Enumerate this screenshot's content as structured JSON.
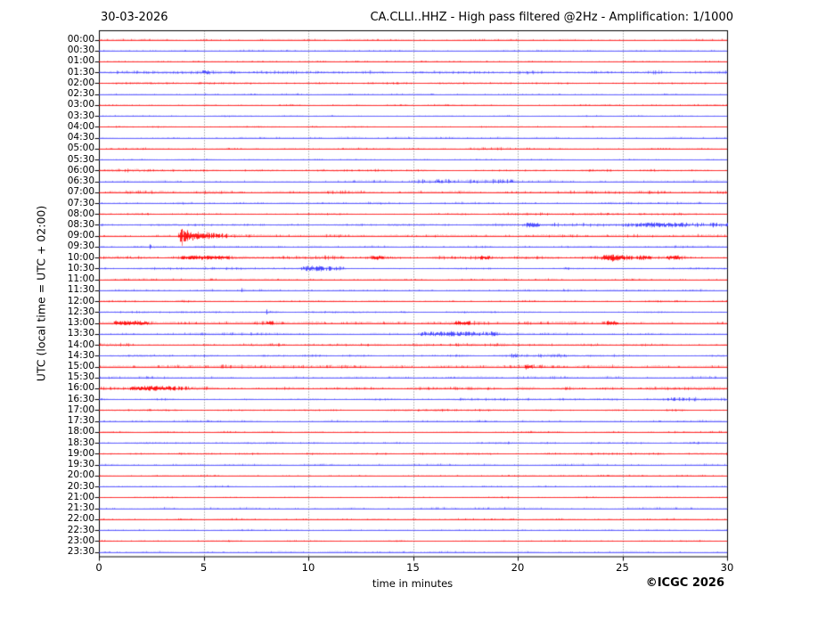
{
  "header": {
    "date": "30-03-2026",
    "title": "CA.CLLI..HHZ - High pass filtered @2Hz - Amplification: 1/1000"
  },
  "axes": {
    "ylabel": "UTC (local time = UTC + 02:00)",
    "xlabel": "time in minutes"
  },
  "footer": {
    "copyright": "©ICGC 2026"
  },
  "palette": {
    "red": "#ff0000",
    "blue": "#3d3dff",
    "grid": "#777777",
    "frame": "#000000",
    "text": "#000000"
  },
  "chart_data": {
    "type": "line",
    "subtype": "helicorder-seismogram",
    "title": "CA.CLLI..HHZ - High pass filtered @2Hz - Amplification: 1/1000",
    "date": "30-03-2026",
    "xlabel": "time in minutes",
    "ylabel": "UTC (local time = UTC + 02:00)",
    "x_range": [
      0,
      30
    ],
    "x_ticks": [
      0,
      5,
      10,
      15,
      20,
      25,
      30
    ],
    "x_gridlines": [
      5,
      10,
      15,
      20,
      25
    ],
    "grid": "vertical-dotted-only",
    "legend": "none",
    "notable_event": {
      "row": "09:00",
      "start_minute": 3.9,
      "description": "large red burst with decaying coda"
    },
    "rows": [
      {
        "label": "00:00",
        "color": "red",
        "base": 0.5,
        "events": []
      },
      {
        "label": "00:30",
        "color": "blue",
        "base": 0.55,
        "events": []
      },
      {
        "label": "01:00",
        "color": "red",
        "base": 0.5,
        "events": []
      },
      {
        "label": "01:30",
        "color": "blue",
        "base": 1.15,
        "events": []
      },
      {
        "label": "02:00",
        "color": "red",
        "base": 0.75,
        "events": []
      },
      {
        "label": "02:30",
        "color": "blue",
        "base": 0.5,
        "events": []
      },
      {
        "label": "03:00",
        "color": "red",
        "base": 0.55,
        "events": []
      },
      {
        "label": "03:30",
        "color": "blue",
        "base": 0.55,
        "events": []
      },
      {
        "label": "04:00",
        "color": "red",
        "base": 0.55,
        "events": []
      },
      {
        "label": "04:30",
        "color": "blue",
        "base": 0.6,
        "events": [
          {
            "t": "band",
            "s": 11.4,
            "e": 12.4,
            "a": 0.7
          }
        ]
      },
      {
        "label": "05:00",
        "color": "red",
        "base": 0.6,
        "events": [
          {
            "t": "band",
            "s": 17.7,
            "e": 19.5,
            "a": 0.9
          }
        ]
      },
      {
        "label": "05:30",
        "color": "blue",
        "base": 0.5,
        "events": []
      },
      {
        "label": "06:00",
        "color": "red",
        "base": 0.7,
        "events": [
          {
            "t": "band",
            "s": 0,
            "e": 3.5,
            "a": 0.7
          }
        ]
      },
      {
        "label": "06:30",
        "color": "blue",
        "base": 0.8,
        "events": [
          {
            "t": "band",
            "s": 15.2,
            "e": 19.8,
            "a": 0.9
          }
        ]
      },
      {
        "label": "07:00",
        "color": "red",
        "base": 1.0,
        "events": []
      },
      {
        "label": "07:30",
        "color": "blue",
        "base": 0.8,
        "events": []
      },
      {
        "label": "08:00",
        "color": "red",
        "base": 0.8,
        "events": []
      },
      {
        "label": "08:30",
        "color": "blue",
        "base": 0.9,
        "events": [
          {
            "t": "band",
            "s": 20.5,
            "e": 30,
            "a": 0.9
          }
        ]
      },
      {
        "label": "09:00",
        "color": "red",
        "base": 0.6,
        "events": [
          {
            "t": "burst",
            "s": 3.85,
            "p": 6,
            "d": 0.85
          },
          {
            "t": "band",
            "s": 4,
            "e": 30,
            "a": 0.45
          }
        ]
      },
      {
        "label": "09:30",
        "color": "blue",
        "base": 0.75,
        "events": [
          {
            "t": "burst",
            "s": 2.4,
            "p": 1.3,
            "d": 0.3
          }
        ]
      },
      {
        "label": "10:00",
        "color": "red",
        "base": 1.25,
        "events": [
          {
            "t": "band",
            "s": 24.2,
            "e": 26.2,
            "a": 1.0
          }
        ]
      },
      {
        "label": "10:30",
        "color": "blue",
        "base": 0.8,
        "events": [
          {
            "t": "band",
            "s": 9.7,
            "e": 11.6,
            "a": 1.0
          }
        ]
      },
      {
        "label": "11:00",
        "color": "red",
        "base": 0.6,
        "events": []
      },
      {
        "label": "11:30",
        "color": "blue",
        "base": 0.7,
        "events": [
          {
            "t": "burst",
            "s": 6.8,
            "p": 1.1,
            "d": 0.3
          }
        ]
      },
      {
        "label": "12:00",
        "color": "red",
        "base": 0.7,
        "events": []
      },
      {
        "label": "12:30",
        "color": "blue",
        "base": 0.7,
        "events": [
          {
            "t": "burst",
            "s": 8.0,
            "p": 1.2,
            "d": 0.3
          }
        ]
      },
      {
        "label": "13:00",
        "color": "red",
        "base": 1.25,
        "events": []
      },
      {
        "label": "13:30",
        "color": "blue",
        "base": 0.9,
        "events": [
          {
            "t": "band",
            "s": 15.4,
            "e": 18.8,
            "a": 1.1
          }
        ]
      },
      {
        "label": "14:00",
        "color": "red",
        "base": 1.0,
        "events": []
      },
      {
        "label": "14:30",
        "color": "blue",
        "base": 0.8,
        "events": [
          {
            "t": "band",
            "s": 19.7,
            "e": 22.2,
            "a": 0.7
          }
        ]
      },
      {
        "label": "15:00",
        "color": "red",
        "base": 1.05,
        "events": [
          {
            "t": "burst",
            "s": 20.3,
            "p": 1.2,
            "d": 0.4
          }
        ]
      },
      {
        "label": "15:30",
        "color": "blue",
        "base": 0.85,
        "events": []
      },
      {
        "label": "16:00",
        "color": "red",
        "base": 1.1,
        "events": [
          {
            "t": "band",
            "s": 1.5,
            "e": 5.5,
            "a": 0.6
          }
        ]
      },
      {
        "label": "16:30",
        "color": "blue",
        "base": 0.8,
        "events": [
          {
            "t": "band",
            "s": 27.2,
            "e": 30,
            "a": 0.9
          }
        ]
      },
      {
        "label": "17:00",
        "color": "red",
        "base": 0.8,
        "events": []
      },
      {
        "label": "17:30",
        "color": "blue",
        "base": 0.65,
        "events": []
      },
      {
        "label": "18:00",
        "color": "red",
        "base": 0.6,
        "events": []
      },
      {
        "label": "18:30",
        "color": "blue",
        "base": 0.7,
        "events": []
      },
      {
        "label": "19:00",
        "color": "red",
        "base": 0.7,
        "events": []
      },
      {
        "label": "19:30",
        "color": "blue",
        "base": 0.6,
        "events": []
      },
      {
        "label": "20:00",
        "color": "red",
        "base": 0.55,
        "events": []
      },
      {
        "label": "20:30",
        "color": "blue",
        "base": 0.6,
        "events": []
      },
      {
        "label": "21:00",
        "color": "red",
        "base": 0.55,
        "events": []
      },
      {
        "label": "21:30",
        "color": "blue",
        "base": 0.7,
        "events": []
      },
      {
        "label": "22:00",
        "color": "red",
        "base": 0.6,
        "events": []
      },
      {
        "label": "22:30",
        "color": "blue",
        "base": 0.55,
        "events": []
      },
      {
        "label": "23:00",
        "color": "red",
        "base": 0.55,
        "events": []
      },
      {
        "label": "23:30",
        "color": "blue",
        "base": 0.6,
        "events": []
      }
    ]
  }
}
